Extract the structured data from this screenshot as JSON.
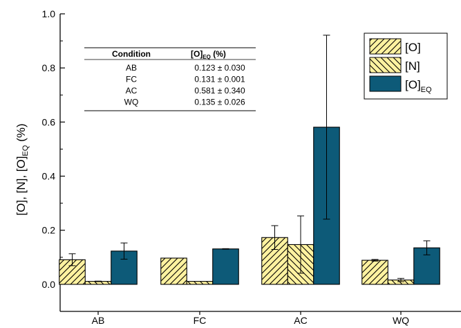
{
  "chart_data": {
    "type": "bar",
    "categories": [
      "AB",
      "FC",
      "AC",
      "WQ"
    ],
    "series": [
      {
        "name": "[O]",
        "key": "O",
        "values": [
          0.091,
          0.097,
          0.173,
          0.089
        ],
        "errors": [
          0.022,
          0.0,
          0.044,
          0.003
        ],
        "color": "#fff2a0",
        "pattern": "diag-right"
      },
      {
        "name": "[N]",
        "key": "N",
        "values": [
          0.011,
          0.011,
          0.147,
          0.016
        ],
        "errors": [
          0.001,
          0.0,
          0.106,
          0.006
        ],
        "color": "#fff2a0",
        "pattern": "diag-left"
      },
      {
        "name": "[O]EQ",
        "key": "OEQ",
        "values": [
          0.123,
          0.131,
          0.581,
          0.135
        ],
        "errors": [
          0.03,
          0.001,
          0.34,
          0.026
        ],
        "color": "#0d5a78",
        "pattern": "solid"
      }
    ],
    "ylabel": {
      "parts": [
        {
          "text": "[O], [N], [O]",
          "sub": false
        },
        {
          "text": "EQ",
          "sub": true
        },
        {
          "text": " (%)",
          "sub": false
        }
      ]
    },
    "xlabel": "",
    "ylim": [
      -0.1,
      1.0
    ],
    "yticks": [
      "0.0",
      "0.2",
      "0.4",
      "0.6",
      "0.8",
      "1.0"
    ],
    "legend_position": "top-right",
    "grid": false,
    "inset_table": {
      "headers": [
        "Condition",
        "[O]",
        "EQ",
        " (%)"
      ],
      "rows": [
        [
          "AB",
          "0.123 ± 0.030"
        ],
        [
          "FC",
          "0.131 ± 0.001"
        ],
        [
          "AC",
          "0.581 ± 0.340"
        ],
        [
          "WQ",
          "0.135 ± 0.026"
        ]
      ]
    }
  }
}
